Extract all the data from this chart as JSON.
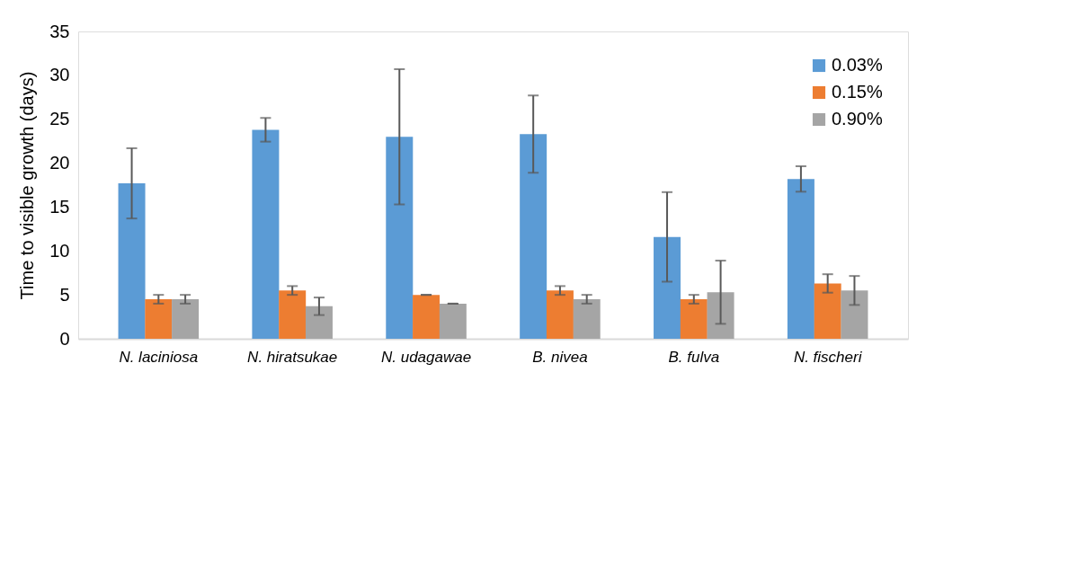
{
  "chart_data": {
    "type": "bar",
    "ylabel": "Time to visible growth (days)",
    "categories": [
      "N. laciniosa",
      "N. hiratsukae",
      "N. udagawae",
      "B. nivea",
      "B. fulva",
      "N. fischeri"
    ],
    "series": [
      {
        "name": "0.03%",
        "color": "#5b9bd5",
        "values": [
          17.7,
          23.8,
          23.0,
          23.3,
          11.6,
          18.2
        ],
        "errors": [
          4.0,
          1.35,
          7.7,
          4.4,
          5.1,
          1.45
        ]
      },
      {
        "name": "0.15%",
        "color": "#ed7d31",
        "values": [
          4.5,
          5.5,
          5.0,
          5.5,
          4.5,
          6.3
        ],
        "errors": [
          0.5,
          0.5,
          0,
          0.5,
          0.5,
          1.05
        ]
      },
      {
        "name": "0.90%",
        "color": "#a5a5a5",
        "values": [
          4.5,
          3.7,
          4.0,
          4.5,
          5.3,
          5.5
        ],
        "errors": [
          0.5,
          1.0,
          0,
          0.5,
          3.6,
          1.65
        ]
      }
    ],
    "ylim": [
      0,
      35
    ],
    "yticks": [
      0,
      5,
      10,
      15,
      20,
      25,
      30,
      35
    ],
    "grid": false,
    "legend": "top right"
  }
}
